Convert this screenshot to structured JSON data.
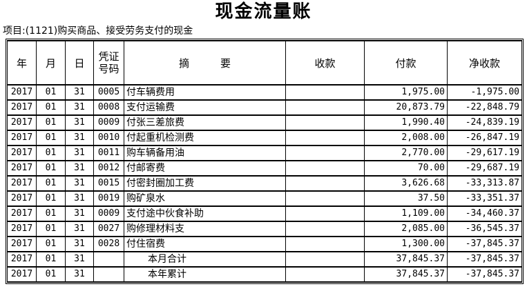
{
  "page": {
    "title": "现金流量账",
    "subtitle": "项目:(1121)购买商品、接受劳务支付的现金"
  },
  "table": {
    "headers": {
      "year": "年",
      "month": "月",
      "day": "日",
      "voucher_line1": "凭证",
      "voucher_line2": "号码",
      "summary": "摘　　　要",
      "receipt": "收款",
      "payment": "付款",
      "net": "净收款"
    },
    "rows": [
      {
        "year": "2017",
        "month": "01",
        "day": "31",
        "voucher": "0005",
        "summary": "付车辆费用",
        "receipt": "",
        "payment": "1,975.00",
        "net": "-1,975.00",
        "total": false
      },
      {
        "year": "2017",
        "month": "01",
        "day": "31",
        "voucher": "0008",
        "summary": "支付运输费",
        "receipt": "",
        "payment": "20,873.79",
        "net": "-22,848.79",
        "total": false
      },
      {
        "year": "2017",
        "month": "01",
        "day": "31",
        "voucher": "0009",
        "summary": "付张三差旅费",
        "receipt": "",
        "payment": "1,990.40",
        "net": "-24,839.19",
        "total": false
      },
      {
        "year": "2017",
        "month": "01",
        "day": "31",
        "voucher": "0010",
        "summary": "付起重机检测费",
        "receipt": "",
        "payment": "2,008.00",
        "net": "-26,847.19",
        "total": false
      },
      {
        "year": "2017",
        "month": "01",
        "day": "31",
        "voucher": "0011",
        "summary": "购车辆备用油",
        "receipt": "",
        "payment": "2,770.00",
        "net": "-29,617.19",
        "total": false
      },
      {
        "year": "2017",
        "month": "01",
        "day": "31",
        "voucher": "0012",
        "summary": "付邮寄费",
        "receipt": "",
        "payment": "70.00",
        "net": "-29,687.19",
        "total": false
      },
      {
        "year": "2017",
        "month": "01",
        "day": "31",
        "voucher": "0015",
        "summary": "付密封圈加工费",
        "receipt": "",
        "payment": "3,626.68",
        "net": "-33,313.87",
        "total": false
      },
      {
        "year": "2017",
        "month": "01",
        "day": "31",
        "voucher": "0019",
        "summary": "购矿泉水",
        "receipt": "",
        "payment": "37.50",
        "net": "-33,351.37",
        "total": false
      },
      {
        "year": "2017",
        "month": "01",
        "day": "31",
        "voucher": "0009",
        "summary": "支付途中伙食补助",
        "receipt": "",
        "payment": "1,109.00",
        "net": "-34,460.37",
        "total": false
      },
      {
        "year": "2017",
        "month": "01",
        "day": "31",
        "voucher": "0027",
        "summary": "购修理材料支",
        "receipt": "",
        "payment": "2,085.00",
        "net": "-36,545.37",
        "total": false
      },
      {
        "year": "2017",
        "month": "01",
        "day": "31",
        "voucher": "0028",
        "summary": "付住宿费",
        "receipt": "",
        "payment": "1,300.00",
        "net": "-37,845.37",
        "total": false
      },
      {
        "year": "2017",
        "month": "01",
        "day": "31",
        "voucher": "",
        "summary": "本月合计",
        "receipt": "",
        "payment": "37,845.37",
        "net": "-37,845.37",
        "total": true
      },
      {
        "year": "2017",
        "month": "01",
        "day": "31",
        "voucher": "",
        "summary": "本年累计",
        "receipt": "",
        "payment": "37,845.37",
        "net": "-37,845.37",
        "total": true
      }
    ]
  }
}
